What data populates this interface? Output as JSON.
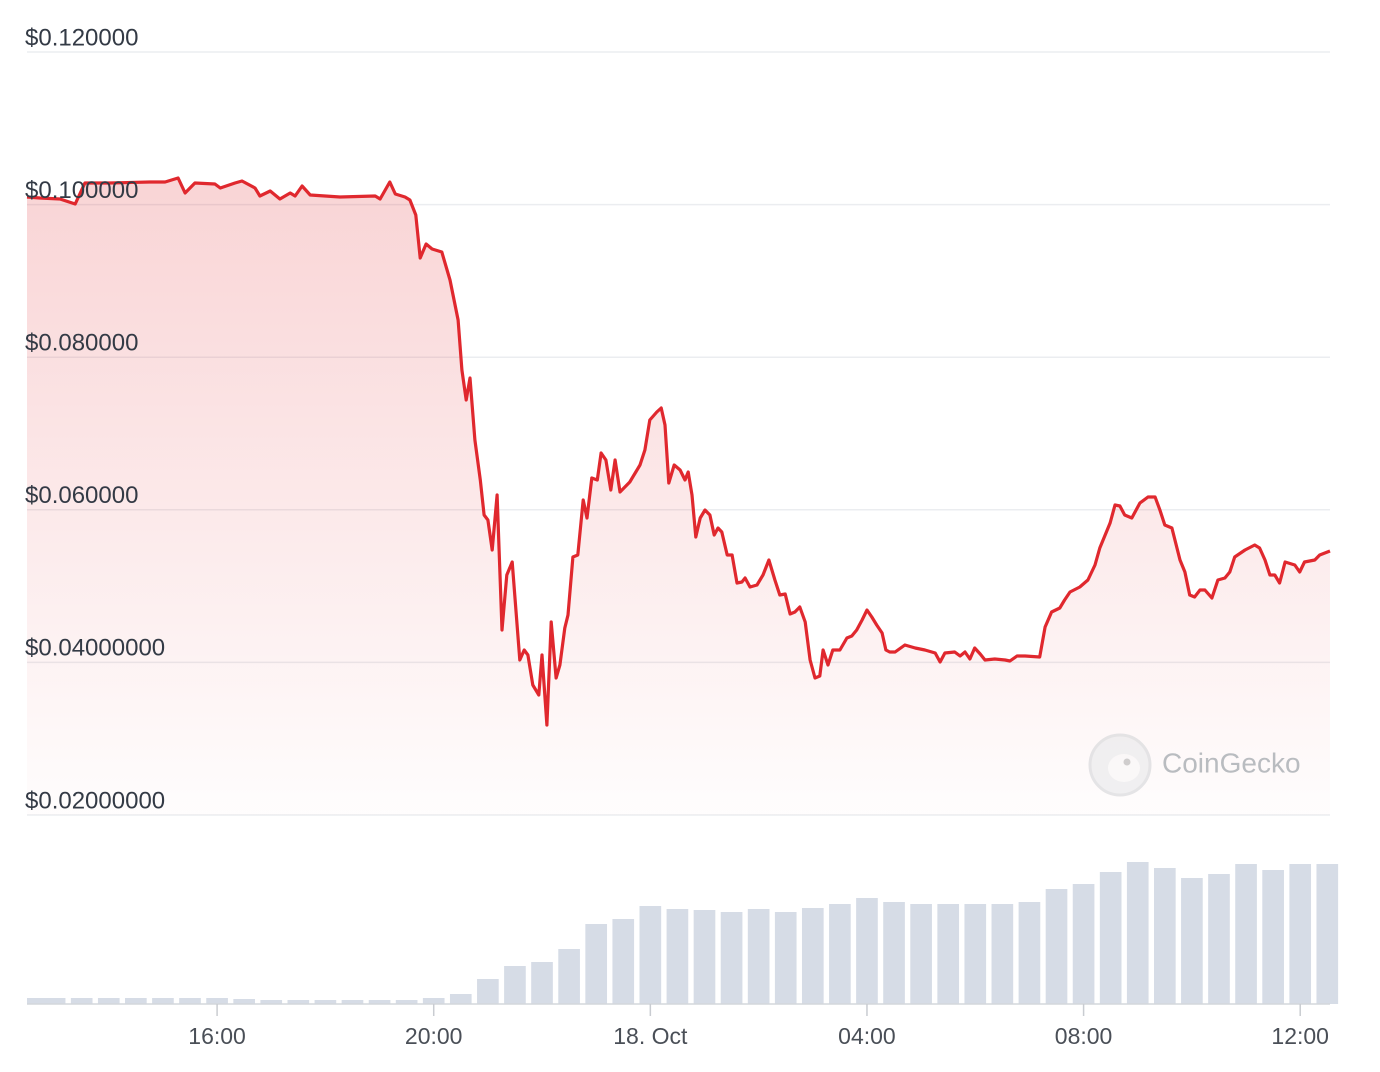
{
  "chart_data": {
    "type": "line",
    "color": "#e0282e",
    "x": [
      12.49,
      12.73,
      13.1,
      13.38,
      13.56,
      14.02,
      14.76,
      15.04,
      15.28,
      15.41,
      15.59,
      15.96,
      16.06,
      16.33,
      16.46,
      16.7,
      16.79,
      16.98,
      17.16,
      17.35,
      17.44,
      17.57,
      17.72,
      18.27,
      18.92,
      19.01,
      19.19,
      19.29,
      19.47,
      19.56,
      19.67,
      19.75,
      19.86,
      19.97,
      20.15,
      20.3,
      20.45,
      20.52,
      20.6,
      20.67,
      20.76,
      20.86,
      20.93,
      21.0,
      21.08,
      21.17,
      21.26,
      21.35,
      21.45,
      21.59,
      21.67,
      21.74,
      21.83,
      21.94,
      22.0,
      22.09,
      22.17,
      22.26,
      22.33,
      22.42,
      22.48,
      22.57,
      22.66,
      22.76,
      22.83,
      22.92,
      23.02,
      23.09,
      23.18,
      23.27,
      23.35,
      23.44,
      23.62,
      23.81,
      23.9,
      23.99,
      24.12,
      24.2,
      24.27,
      24.34,
      24.44,
      24.55,
      24.64,
      24.7,
      24.77,
      24.84,
      24.92,
      25.01,
      25.1,
      25.18,
      25.25,
      25.32,
      25.42,
      25.51,
      25.6,
      25.69,
      25.75,
      25.84,
      25.97,
      26.08,
      26.19,
      26.3,
      26.39,
      26.49,
      26.58,
      26.67,
      26.76,
      26.86,
      26.95,
      27.04,
      27.13,
      27.19,
      27.28,
      27.37,
      27.5,
      27.63,
      27.72,
      27.81,
      27.91,
      28.0,
      28.09,
      28.18,
      28.28,
      28.35,
      28.42,
      28.52,
      28.7,
      28.89,
      29.07,
      29.26,
      29.35,
      29.44,
      29.62,
      29.72,
      29.81,
      29.9,
      29.99,
      30.09,
      30.18,
      30.36,
      30.55,
      30.64,
      30.77,
      30.92,
      31.19,
      31.29,
      31.41,
      31.56,
      31.65,
      31.75,
      31.93,
      32.08,
      32.21,
      32.3,
      32.49,
      32.58,
      32.67,
      32.76,
      32.89,
      33.04,
      33.19,
      33.32,
      33.41,
      33.5,
      33.63,
      33.78,
      33.87,
      33.96,
      34.05,
      34.15,
      34.24,
      34.37,
      34.48,
      34.61,
      34.7,
      34.79,
      34.98,
      35.16,
      35.25,
      35.35,
      35.44,
      35.53,
      35.62,
      35.72,
      35.9,
      35.99,
      36.08,
      36.27,
      36.36,
      36.55
    ],
    "values": [
      0.101,
      0.10087,
      0.10073,
      0.10008,
      0.10283,
      0.10283,
      0.10296,
      0.10296,
      0.10349,
      0.10152,
      0.10283,
      0.1027,
      0.10218,
      0.10283,
      0.10309,
      0.10218,
      0.10113,
      0.10178,
      0.10073,
      0.10152,
      0.10113,
      0.10244,
      0.10126,
      0.101,
      0.10113,
      0.10073,
      0.10296,
      0.10139,
      0.101,
      0.1006,
      0.09864,
      0.093,
      0.09484,
      0.09418,
      0.09379,
      0.09012,
      0.08488,
      0.07832,
      0.07439,
      0.07727,
      0.06915,
      0.06391,
      0.05932,
      0.05866,
      0.05473,
      0.06194,
      0.04424,
      0.05145,
      0.05316,
      0.04031,
      0.04162,
      0.04097,
      0.03704,
      0.03573,
      0.04097,
      0.0318,
      0.0453,
      0.03796,
      0.03966,
      0.04451,
      0.04621,
      0.05381,
      0.05408,
      0.06128,
      0.05892,
      0.06417,
      0.06391,
      0.06744,
      0.06653,
      0.0626,
      0.06653,
      0.06233,
      0.06364,
      0.06587,
      0.06784,
      0.07177,
      0.07282,
      0.07334,
      0.07111,
      0.06351,
      0.06587,
      0.06522,
      0.06391,
      0.06495,
      0.06194,
      0.05644,
      0.05892,
      0.05997,
      0.05932,
      0.0567,
      0.05761,
      0.05709,
      0.05408,
      0.05408,
      0.05041,
      0.05054,
      0.05106,
      0.04988,
      0.05014,
      0.05145,
      0.05342,
      0.0508,
      0.04883,
      0.04896,
      0.04634,
      0.04661,
      0.04726,
      0.0453,
      0.04031,
      0.03796,
      0.03822,
      0.04162,
      0.03966,
      0.04162,
      0.04162,
      0.0432,
      0.04346,
      0.04424,
      0.04556,
      0.04687,
      0.04595,
      0.0449,
      0.04385,
      0.04162,
      0.04136,
      0.04136,
      0.04228,
      0.04189,
      0.04162,
      0.04123,
      0.04005,
      0.04123,
      0.04136,
      0.04084,
      0.04136,
      0.04044,
      0.04189,
      0.0411,
      0.04031,
      0.04044,
      0.04031,
      0.04018,
      0.04084,
      0.04084,
      0.04071,
      0.04464,
      0.04661,
      0.04713,
      0.04818,
      0.04923,
      0.04988,
      0.0508,
      0.05276,
      0.05499,
      0.05827,
      0.06063,
      0.0605,
      0.05932,
      0.05892,
      0.06089,
      0.06168,
      0.06168,
      0.05997,
      0.05801,
      0.05761,
      0.05342,
      0.05185,
      0.04883,
      0.04857,
      0.04949,
      0.04949,
      0.04844,
      0.0508,
      0.05106,
      0.05185,
      0.05381,
      0.05473,
      0.05539,
      0.05499,
      0.05342,
      0.05145,
      0.05145,
      0.05041,
      0.05316,
      0.05276,
      0.05185,
      0.05316,
      0.05342,
      0.05408,
      0.0546
    ],
    "xlim": [
      12.49,
      36.55
    ],
    "xticks": [
      {
        "value": 16,
        "label": "16:00"
      },
      {
        "value": 20,
        "label": "20:00"
      },
      {
        "value": 24,
        "label": "18. Oct"
      },
      {
        "value": 28,
        "label": "04:00"
      },
      {
        "value": 32,
        "label": "08:00"
      },
      {
        "value": 36,
        "label": "12:00"
      }
    ],
    "ylim": [
      0.02,
      0.12
    ],
    "yticks": [
      {
        "value": 0.12,
        "label": "$0.120000"
      },
      {
        "value": 0.1,
        "label": "$0.100000"
      },
      {
        "value": 0.08,
        "label": "$0.080000"
      },
      {
        "value": 0.06,
        "label": "$0.060000"
      },
      {
        "value": 0.04,
        "label": "$0.04000000"
      },
      {
        "value": 0.02,
        "label": "$0.02000000"
      }
    ],
    "grid": true,
    "volume": {
      "color": "#d6dce6",
      "ylim": [
        0,
        146
      ],
      "x": [
        12.5,
        13,
        13.5,
        14,
        14.5,
        15,
        15.5,
        16,
        16.5,
        17,
        17.5,
        18,
        18.5,
        19,
        19.5,
        20,
        20.5,
        21,
        21.5,
        22,
        22.5,
        23,
        23.5,
        24,
        24.5,
        25,
        25.5,
        26,
        26.5,
        27,
        27.5,
        28,
        28.5,
        29,
        29.5,
        30,
        30.5,
        31,
        31.5,
        32,
        32.5,
        33,
        33.5,
        34,
        34.5,
        35,
        35.5,
        36,
        36.5
      ],
      "values": [
        6,
        6,
        6,
        6,
        6,
        6,
        6,
        6,
        5,
        4,
        4,
        4,
        4,
        4,
        4,
        6,
        10,
        25,
        38,
        42,
        55,
        80,
        85,
        98,
        95,
        94,
        92,
        95,
        92,
        96,
        100,
        106,
        102,
        100,
        100,
        100,
        100,
        102,
        115,
        120,
        132,
        142,
        136,
        126,
        130,
        140,
        134,
        140,
        140
      ]
    },
    "watermark": "CoinGecko"
  }
}
